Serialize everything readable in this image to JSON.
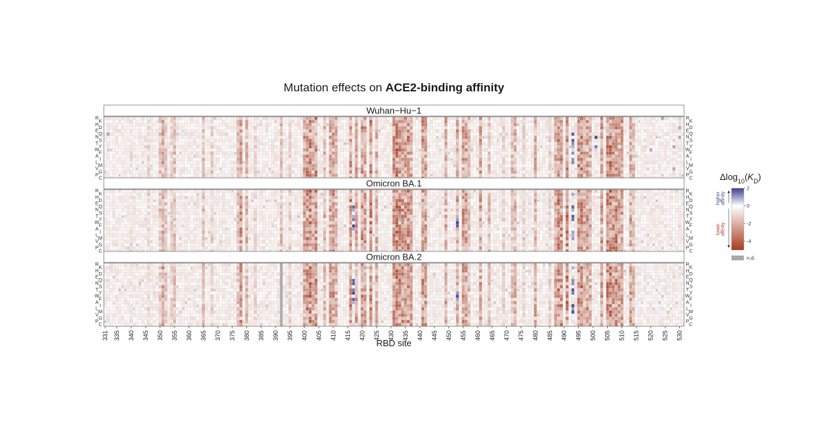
{
  "chart_data": {
    "type": "heatmap",
    "title": "Mutation effects on",
    "title_bold": "ACE2-binding affinity",
    "xlabel": "RBD site",
    "site_range": [
      331,
      531
    ],
    "x_tick_labels": [
      "331",
      "335",
      "340",
      "345",
      "350",
      "355",
      "360",
      "365",
      "370",
      "375",
      "380",
      "385",
      "390",
      "395",
      "400",
      "405",
      "410",
      "415",
      "420",
      "425",
      "430",
      "435",
      "440",
      "445",
      "450",
      "455",
      "460",
      "465",
      "470",
      "475",
      "480",
      "485",
      "490",
      "495",
      "500",
      "505",
      "510",
      "515",
      "520",
      "525",
      "530"
    ],
    "amino_acids": [
      "R",
      "K",
      "H",
      "D",
      "E",
      "Q",
      "N",
      "S",
      "T",
      "Y",
      "W",
      "F",
      "A",
      "I",
      "L",
      "M",
      "V",
      "G",
      "P",
      "C"
    ],
    "left_labels": [
      "R",
      "K",
      "H",
      "D",
      "E",
      "Q",
      "N",
      "S",
      "T",
      "Y",
      "W",
      "F",
      "A",
      "I",
      "L",
      "M",
      "V",
      "G",
      "P",
      "C"
    ],
    "right_labels": [
      "R",
      "K",
      "H",
      "D",
      "E",
      "Q",
      "N",
      "S",
      "T",
      "Y",
      "W",
      "F",
      "A",
      "I",
      "L",
      "M",
      "V",
      "G",
      "P",
      "C"
    ],
    "panels": [
      {
        "name": "Wuhan−Hu−1",
        "site_effects": [
          [
            331,
            -0.3
          ],
          [
            340,
            -0.6
          ],
          [
            346,
            -0.8
          ],
          [
            350,
            -1.2
          ],
          [
            351,
            -1.8
          ],
          [
            352,
            -1.2
          ],
          [
            354,
            -1.0
          ],
          [
            355,
            -1.4
          ],
          [
            365,
            -1.3
          ],
          [
            368,
            -1.0
          ],
          [
            377,
            -1.3
          ],
          [
            378,
            -2.2
          ],
          [
            380,
            -1.6
          ],
          [
            383,
            -0.8
          ],
          [
            392,
            -1.4
          ],
          [
            395,
            -1.0
          ],
          [
            400,
            -2.0
          ],
          [
            401,
            -2.4
          ],
          [
            402,
            -2.6
          ],
          [
            403,
            -1.8
          ],
          [
            404,
            -2.4
          ],
          [
            407,
            -1.6
          ],
          [
            409,
            -2.0
          ],
          [
            410,
            -2.2
          ],
          [
            411,
            -1.6
          ],
          [
            416,
            -2.2
          ],
          [
            418,
            -2.0
          ],
          [
            420,
            -2.2
          ],
          [
            421,
            -2.0
          ],
          [
            423,
            -2.4
          ],
          [
            425,
            -1.8
          ],
          [
            431,
            -2.2
          ],
          [
            432,
            -2.6
          ],
          [
            433,
            -2.4
          ],
          [
            434,
            -2.4
          ],
          [
            435,
            -2.2
          ],
          [
            436,
            -2.4
          ],
          [
            437,
            -2.0
          ],
          [
            441,
            -2.2
          ],
          [
            442,
            -2.0
          ],
          [
            449,
            -1.8
          ],
          [
            453,
            -2.0
          ],
          [
            455,
            -2.2
          ],
          [
            456,
            -2.0
          ],
          [
            457,
            -1.4
          ],
          [
            461,
            -2.0
          ],
          [
            464,
            -1.4
          ],
          [
            469,
            -1.0
          ],
          [
            472,
            -1.4
          ],
          [
            473,
            -1.6
          ],
          [
            476,
            -0.8
          ],
          [
            480,
            -1.8
          ],
          [
            485,
            -1.0
          ],
          [
            487,
            -1.8
          ],
          [
            488,
            -2.6
          ],
          [
            489,
            -2.4
          ],
          [
            491,
            -2.6
          ],
          [
            495,
            -2.4
          ],
          [
            496,
            -2.6
          ],
          [
            497,
            -1.8
          ],
          [
            498,
            -2.2
          ],
          [
            499,
            -1.8
          ],
          [
            503,
            -2.2
          ],
          [
            505,
            -2.6
          ],
          [
            506,
            -2.6
          ],
          [
            507,
            -2.2
          ],
          [
            508,
            -2.4
          ],
          [
            509,
            -2.0
          ],
          [
            510,
            -2.2
          ],
          [
            513,
            -2.0
          ],
          [
            514,
            -1.4
          ]
        ],
        "nd_cells": [
          [
            "Q",
            332
          ],
          [
            "Q",
            506
          ],
          [
            "Y",
            496
          ],
          [
            "R",
            524
          ],
          [
            "Y",
            528
          ],
          [
            "N",
            530
          ],
          [
            "D",
            530
          ],
          [
            "W",
            520
          ],
          [
            "V",
            528
          ]
        ],
        "blue_cells": [
          [
            "Q",
            493
          ],
          [
            "T",
            493
          ],
          [
            "Y",
            493
          ],
          [
            "F",
            493
          ],
          [
            "L",
            493
          ],
          [
            "I",
            493
          ],
          [
            "S",
            493
          ],
          [
            "N",
            501
          ],
          [
            "Y",
            501
          ]
        ]
      },
      {
        "name": "Omicron BA.1",
        "site_effects": [
          [
            331,
            -0.3
          ],
          [
            340,
            -0.6
          ],
          [
            346,
            -0.8
          ],
          [
            350,
            -1.2
          ],
          [
            351,
            -1.8
          ],
          [
            352,
            -1.2
          ],
          [
            354,
            -1.0
          ],
          [
            355,
            -1.4
          ],
          [
            365,
            -1.3
          ],
          [
            368,
            -1.0
          ],
          [
            377,
            -1.3
          ],
          [
            378,
            -2.2
          ],
          [
            380,
            -1.6
          ],
          [
            383,
            -0.8
          ],
          [
            392,
            -1.4
          ],
          [
            395,
            -1.0
          ],
          [
            400,
            -2.0
          ],
          [
            401,
            -2.4
          ],
          [
            402,
            -2.6
          ],
          [
            403,
            -1.8
          ],
          [
            404,
            -2.4
          ],
          [
            407,
            -1.6
          ],
          [
            409,
            -2.0
          ],
          [
            410,
            -2.2
          ],
          [
            411,
            -1.6
          ],
          [
            416,
            -2.2
          ],
          [
            418,
            -2.0
          ],
          [
            420,
            -2.2
          ],
          [
            421,
            -2.0
          ],
          [
            423,
            -2.4
          ],
          [
            425,
            -1.8
          ],
          [
            431,
            -2.2
          ],
          [
            432,
            -2.6
          ],
          [
            433,
            -2.4
          ],
          [
            434,
            -2.4
          ],
          [
            435,
            -2.2
          ],
          [
            436,
            -2.4
          ],
          [
            437,
            -2.0
          ],
          [
            441,
            -2.2
          ],
          [
            442,
            -2.0
          ],
          [
            449,
            -1.8
          ],
          [
            453,
            -2.0
          ],
          [
            455,
            -2.2
          ],
          [
            456,
            -2.0
          ],
          [
            457,
            -1.4
          ],
          [
            461,
            -2.0
          ],
          [
            464,
            -1.4
          ],
          [
            469,
            -1.0
          ],
          [
            472,
            -1.4
          ],
          [
            473,
            -1.6
          ],
          [
            476,
            -0.8
          ],
          [
            480,
            -1.8
          ],
          [
            485,
            -1.0
          ],
          [
            487,
            -1.8
          ],
          [
            488,
            -2.6
          ],
          [
            489,
            -2.4
          ],
          [
            491,
            -2.6
          ],
          [
            495,
            -2.4
          ],
          [
            496,
            -2.6
          ],
          [
            497,
            -1.8
          ],
          [
            498,
            -2.2
          ],
          [
            499,
            -1.8
          ],
          [
            503,
            -2.2
          ],
          [
            505,
            -2.6
          ],
          [
            506,
            -2.6
          ],
          [
            507,
            -2.2
          ],
          [
            508,
            -2.4
          ],
          [
            509,
            -2.0
          ],
          [
            510,
            -2.2
          ],
          [
            513,
            -2.0
          ],
          [
            514,
            -1.4
          ]
        ],
        "nd_cells": [],
        "blue_cells": [
          [
            "Q",
            417
          ],
          [
            "N",
            417
          ],
          [
            "Y",
            417
          ],
          [
            "T",
            417
          ],
          [
            "F",
            417
          ],
          [
            "A",
            417
          ],
          [
            "Y",
            453
          ],
          [
            "F",
            453
          ],
          [
            "W",
            453
          ],
          [
            "K",
            493
          ],
          [
            "Q",
            493
          ],
          [
            "T",
            493
          ],
          [
            "N",
            493
          ],
          [
            "Y",
            493
          ],
          [
            "L",
            493
          ],
          [
            "I",
            493
          ],
          [
            "M",
            493
          ]
        ]
      },
      {
        "name": "Omicron BA.2",
        "site_effects": [
          [
            331,
            -0.3
          ],
          [
            340,
            -0.6
          ],
          [
            346,
            -0.8
          ],
          [
            350,
            -1.2
          ],
          [
            351,
            -1.8
          ],
          [
            352,
            -1.2
          ],
          [
            354,
            -1.0
          ],
          [
            355,
            -1.4
          ],
          [
            365,
            -1.3
          ],
          [
            368,
            -1.0
          ],
          [
            377,
            -1.3
          ],
          [
            378,
            -2.2
          ],
          [
            380,
            -1.6
          ],
          [
            383,
            -0.8
          ],
          [
            392,
            -1.4
          ],
          [
            395,
            -1.0
          ],
          [
            400,
            -2.0
          ],
          [
            401,
            -2.4
          ],
          [
            402,
            -2.6
          ],
          [
            403,
            -1.8
          ],
          [
            404,
            -2.4
          ],
          [
            407,
            -1.6
          ],
          [
            409,
            -2.0
          ],
          [
            410,
            -2.2
          ],
          [
            411,
            -1.6
          ],
          [
            416,
            -2.2
          ],
          [
            418,
            -2.0
          ],
          [
            420,
            -2.2
          ],
          [
            421,
            -2.0
          ],
          [
            423,
            -2.4
          ],
          [
            425,
            -1.8
          ],
          [
            431,
            -2.2
          ],
          [
            432,
            -2.6
          ],
          [
            433,
            -2.4
          ],
          [
            434,
            -2.4
          ],
          [
            435,
            -2.2
          ],
          [
            436,
            -2.4
          ],
          [
            437,
            -2.0
          ],
          [
            441,
            -2.2
          ],
          [
            442,
            -2.0
          ],
          [
            449,
            -1.8
          ],
          [
            453,
            -2.0
          ],
          [
            455,
            -2.2
          ],
          [
            456,
            -2.0
          ],
          [
            457,
            -1.4
          ],
          [
            461,
            -2.0
          ],
          [
            464,
            -1.4
          ],
          [
            469,
            -1.0
          ],
          [
            472,
            -1.4
          ],
          [
            473,
            -1.6
          ],
          [
            476,
            -0.8
          ],
          [
            480,
            -1.8
          ],
          [
            485,
            -1.0
          ],
          [
            487,
            -1.8
          ],
          [
            488,
            -2.6
          ],
          [
            489,
            -2.4
          ],
          [
            491,
            -2.6
          ],
          [
            495,
            -2.4
          ],
          [
            496,
            -2.6
          ],
          [
            497,
            -1.8
          ],
          [
            498,
            -2.2
          ],
          [
            499,
            -1.8
          ],
          [
            503,
            -2.2
          ],
          [
            505,
            -2.6
          ],
          [
            506,
            -2.6
          ],
          [
            507,
            -2.2
          ],
          [
            508,
            -2.4
          ],
          [
            509,
            -2.0
          ],
          [
            510,
            -2.2
          ],
          [
            513,
            -2.0
          ],
          [
            514,
            -1.4
          ]
        ],
        "nd_sites": [
          392
        ],
        "nd_cells": [],
        "blue_cells": [
          [
            "Q",
            417
          ],
          [
            "N",
            417
          ],
          [
            "Y",
            417
          ],
          [
            "F",
            417
          ],
          [
            "T",
            417
          ],
          [
            "A",
            417
          ],
          [
            "Y",
            453
          ],
          [
            "W",
            453
          ],
          [
            "F",
            453
          ],
          [
            "K",
            493
          ],
          [
            "Q",
            493
          ],
          [
            "T",
            493
          ],
          [
            "N",
            493
          ],
          [
            "Y",
            493
          ],
          [
            "L",
            493
          ],
          [
            "I",
            493
          ],
          [
            "M",
            493
          ]
        ]
      }
    ],
    "legend": {
      "title": "Δlog",
      "title_sub": "10",
      "title_k": "K",
      "title_k_sub": "D",
      "ticks": [
        "2",
        "0",
        "-2",
        "-4"
      ],
      "tick_values": [
        2,
        0,
        -2,
        -4
      ],
      "range": [
        -5,
        2
      ],
      "higher_label": [
        "higher",
        "affinity"
      ],
      "lower_label": [
        "lower",
        "affinity"
      ],
      "nd_label": "n.d."
    },
    "colors": {
      "positive": "#3a3f8f",
      "neutral": "#ffffff",
      "negative": "#a83a1f",
      "nd": "#aaaaaa",
      "grid": "#d4d4d4",
      "higher_text": "#3a3f8f",
      "lower_text": "#b23a24"
    }
  }
}
